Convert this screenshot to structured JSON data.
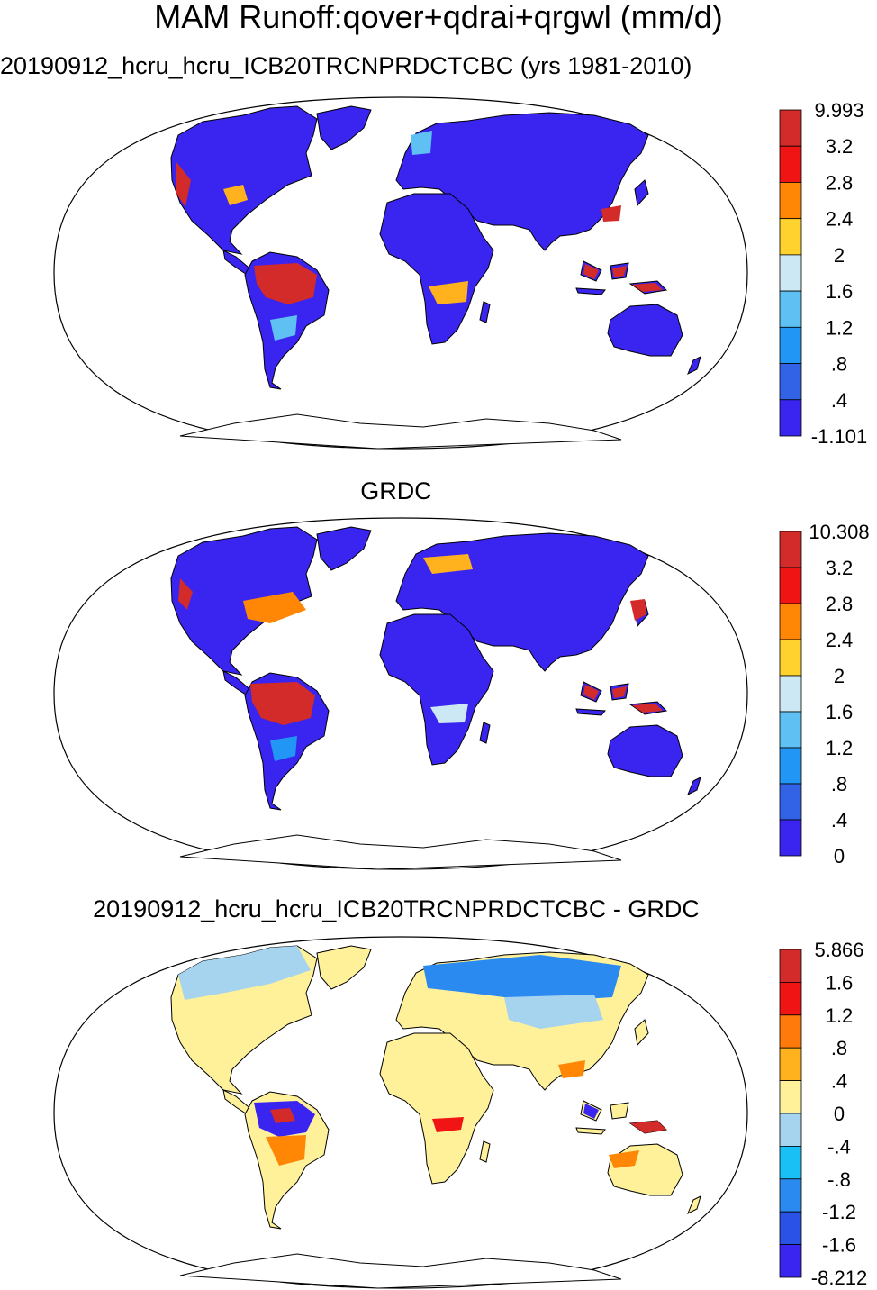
{
  "figure": {
    "title": "MAM Runoff:qover+qdrai+qrgwl (mm/d)"
  },
  "panels": [
    {
      "title": "20190912_hcru_hcru_ICB20TRCNPRDCTCBC (yrs 1981-2010)",
      "colorbar": {
        "labels": [
          "9.993",
          "3.2",
          "2.8",
          "2.4",
          "2",
          "1.6",
          "1.2",
          ".8",
          ".4",
          "-1.101"
        ],
        "colors": [
          "#d32a2a",
          "#f01414",
          "#ff8705",
          "#ffd22d",
          "#cde8f5",
          "#5fc1f3",
          "#2296f5",
          "#3263e6",
          "#3a25f0"
        ]
      }
    },
    {
      "title": "GRDC",
      "colorbar": {
        "labels": [
          "10.308",
          "3.2",
          "2.8",
          "2.4",
          "2",
          "1.6",
          "1.2",
          ".8",
          ".4",
          "0"
        ],
        "colors": [
          "#d32a2a",
          "#f01414",
          "#ff8705",
          "#ffd22d",
          "#cde8f5",
          "#5fc1f3",
          "#2296f5",
          "#3263e6",
          "#3a25f0"
        ]
      }
    },
    {
      "title": "20190912_hcru_hcru_ICB20TRCNPRDCTCBC - GRDC",
      "colorbar": {
        "labels": [
          "5.866",
          "1.6",
          "1.2",
          ".8",
          ".4",
          "0",
          "-.4",
          "-.8",
          "-1.2",
          "-1.6",
          "-8.212"
        ],
        "colors": [
          "#d32a2a",
          "#f01414",
          "#ff7a0a",
          "#ffb21e",
          "#fff09a",
          "#a6d4ee",
          "#19c0f5",
          "#2a8af0",
          "#2b52e6",
          "#3a25f0"
        ]
      }
    }
  ]
}
